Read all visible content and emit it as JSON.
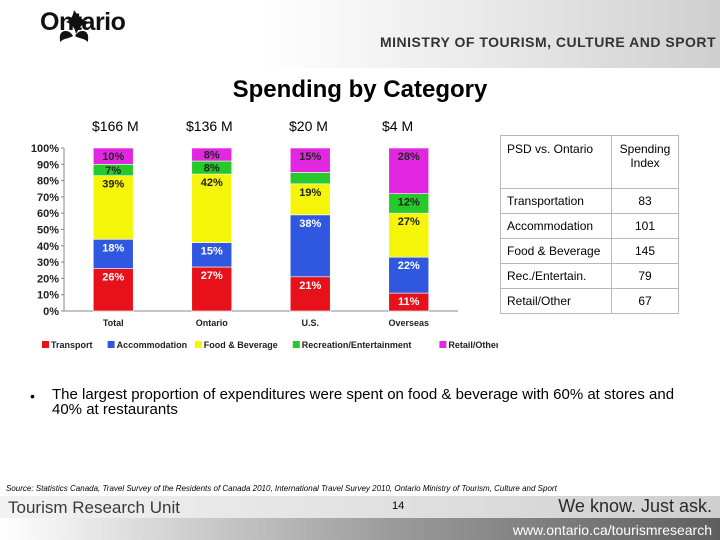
{
  "header": {
    "logo_text": "Ontario",
    "ministry": "MINISTRY OF TOURISM, CULTURE AND SPORT"
  },
  "title": "Spending by Category",
  "totals": [
    "$166 M",
    "$136 M",
    "$20 M",
    "$4 M"
  ],
  "chart_data": {
    "type": "bar",
    "stacked": true,
    "categories": [
      "Total",
      "Ontario",
      "U.S.",
      "Overseas"
    ],
    "series": [
      {
        "name": "Transport",
        "color": "#e8111a",
        "values": [
          26,
          27,
          21,
          11
        ]
      },
      {
        "name": "Accommodation",
        "color": "#2f57e0",
        "values": [
          18,
          15,
          38,
          22
        ]
      },
      {
        "name": "Food & Beverage",
        "color": "#f5f50a",
        "values": [
          39,
          42,
          19,
          27
        ]
      },
      {
        "name": "Recreation/Entertainment",
        "color": "#25c92a",
        "values": [
          7,
          8,
          7,
          12
        ]
      },
      {
        "name": "Retail/Other",
        "color": "#e326e0",
        "values": [
          10,
          8,
          15,
          28
        ]
      }
    ],
    "labels": [
      [
        "26%",
        "18%",
        "39%",
        "7%",
        "10%"
      ],
      [
        "27%",
        "15%",
        "42%",
        "8%",
        "8%"
      ],
      [
        "21%",
        "38%",
        "19%",
        "",
        "15%"
      ],
      [
        "11%",
        "22%",
        "27%",
        "12%",
        "28%"
      ]
    ],
    "yticks": [
      "0%",
      "10%",
      "20%",
      "30%",
      "40%",
      "50%",
      "60%",
      "70%",
      "80%",
      "90%",
      "100%"
    ],
    "ylim": [
      0,
      100
    ],
    "legend_position": "bottom"
  },
  "table": {
    "headers": [
      "PSD vs. Ontario",
      "Spending Index"
    ],
    "rows": [
      {
        "category": "Transportation",
        "index": "83"
      },
      {
        "category": "Accommodation",
        "index": "101"
      },
      {
        "category": "Food & Beverage",
        "index": "145"
      },
      {
        "category": "Rec./Entertain.",
        "index": "79"
      },
      {
        "category": "Retail/Other",
        "index": "67"
      }
    ]
  },
  "bullet": {
    "symbol": "•",
    "text": "The largest proportion of expenditures were spent on food & beverage with 60% at stores and 40% at restaurants"
  },
  "source": "Source: Statistics Canada, Travel Survey of the Residents of Canada 2010, International Travel Survey 2010, Ontario Ministry of Tourism, Culture and Sport",
  "footer": {
    "unit": "Tourism Research Unit",
    "page": "14",
    "tagline": "We know. Just ask.",
    "url": "www.ontario.ca/tourismresearch"
  }
}
